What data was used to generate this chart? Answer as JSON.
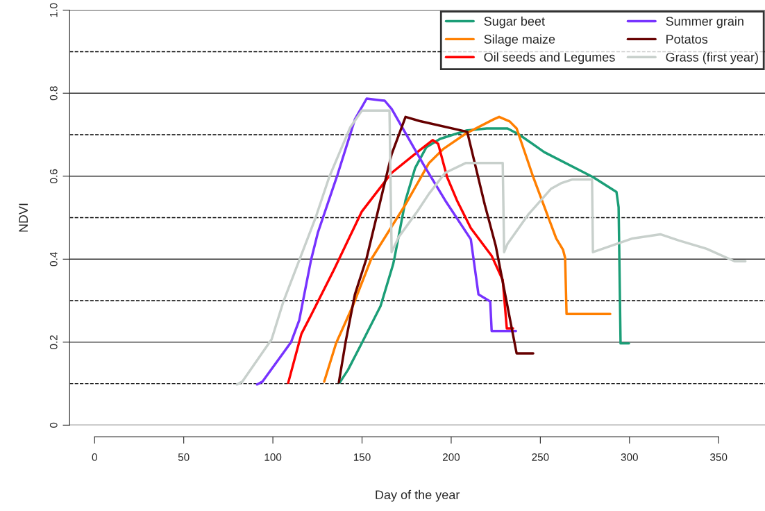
{
  "chart_data": {
    "type": "line",
    "xlabel": "Day of the year",
    "ylabel": "NDVI",
    "xlim": [
      -14,
      376
    ],
    "ylim": [
      0,
      1.0
    ],
    "xticks": [
      0,
      50,
      100,
      150,
      200,
      250,
      300,
      350
    ],
    "yticks": [
      0,
      0.2,
      0.4,
      0.6,
      0.8,
      {
        "value": 1,
        "label": "1.0"
      }
    ],
    "grid": "y",
    "legend": "top right",
    "line_style": "solid",
    "marker": "none",
    "ref_lines": [
      {
        "axis": "y",
        "value": 0.1,
        "line_style": "dashed",
        "color": "#000000"
      },
      {
        "axis": "y",
        "value": 0.3,
        "line_style": "dashed",
        "color": "#000000"
      },
      {
        "axis": "y",
        "value": 0.5,
        "line_style": "dashed",
        "color": "#000000"
      },
      {
        "axis": "y",
        "value": 0.7,
        "line_style": "dashed",
        "color": "#000000"
      },
      {
        "axis": "y",
        "value": 0.9,
        "line_style": "dashed",
        "color": "#000000"
      }
    ],
    "series": [
      {
        "name": "Sugar beet",
        "color": "#1b9e77",
        "x": [
          137.4,
          142.1,
          149.9,
          160.4,
          167.4,
          168.2,
          174.4,
          179.8,
          186.1,
          193.8,
          208.3,
          219.9,
          231.6,
          238.2,
          252.2,
          279.5,
          292.7,
          293.9,
          295,
          299.7
        ],
        "values": [
          0.102,
          0.133,
          0.198,
          0.287,
          0.387,
          0.403,
          0.542,
          0.62,
          0.67,
          0.69,
          0.71,
          0.715,
          0.715,
          0.7,
          0.658,
          0.598,
          0.562,
          0.525,
          0.197,
          0.197
        ]
      },
      {
        "name": "Silage maize",
        "color": "#ff7f00",
        "x": [
          128.8,
          135.5,
          144.8,
          154.9,
          174.4,
          187.6,
          195.4,
          208.3,
          223.8,
          226.9,
          232.8,
          236.7,
          246,
          258.9,
          262.7,
          263.9,
          264.7,
          289.2
        ],
        "values": [
          0.105,
          0.198,
          0.287,
          0.398,
          0.532,
          0.632,
          0.665,
          0.703,
          0.737,
          0.743,
          0.732,
          0.715,
          0.598,
          0.45,
          0.423,
          0.403,
          0.268,
          0.268
        ]
      },
      {
        "name": "Oil seeds and Legumes",
        "color": "#ff0000",
        "x": [
          108.6,
          116,
          121.4,
          134.3,
          149.9,
          166.6,
          181,
          189.6,
          192.7,
          197.7,
          203.2,
          211,
          222.7,
          228.9,
          231.2,
          234.7
        ],
        "values": [
          0.102,
          0.22,
          0.265,
          0.375,
          0.515,
          0.608,
          0.658,
          0.687,
          0.678,
          0.598,
          0.542,
          0.475,
          0.408,
          0.35,
          0.233,
          0.233
        ]
      },
      {
        "name": "Summer grain",
        "color": "#7733ff",
        "x": [
          91.1,
          94.2,
          110.2,
          114.8,
          117.6,
          121.4,
          125.3,
          136.2,
          146,
          152.6,
          160.4,
          162.7,
          166.6,
          184.9,
          196.6,
          211,
          215.3,
          221.9,
          222.7,
          236.3
        ],
        "values": [
          0.098,
          0.105,
          0.2,
          0.253,
          0.315,
          0.398,
          0.465,
          0.603,
          0.737,
          0.787,
          0.783,
          0.782,
          0.762,
          0.625,
          0.542,
          0.448,
          0.315,
          0.298,
          0.227,
          0.227
        ]
      },
      {
        "name": "Potatos",
        "color": "#660000",
        "x": [
          137,
          140.9,
          146,
          152.6,
          166.6,
          174.4,
          182.2,
          209,
          218.8,
          225,
          236.7,
          246
        ],
        "values": [
          0.103,
          0.203,
          0.315,
          0.403,
          0.653,
          0.743,
          0.733,
          0.707,
          0.532,
          0.432,
          0.173,
          0.173
        ]
      },
      {
        "name": "Grass (first year)",
        "color": "#c8d0cc",
        "x": [
          79.8,
          82.9,
          99.3,
          105.9,
          123.8,
          131.6,
          137,
          143.3,
          149.9,
          165.4,
          166.6,
          170.5,
          181,
          187.6,
          196.6,
          208.3,
          228.9,
          229.7,
          231.6,
          243.3,
          256.1,
          261.6,
          267.8,
          279,
          279.5,
          301.7,
          317.3,
          327.7,
          343.3,
          358.9,
          365
        ],
        "values": [
          0.098,
          0.105,
          0.207,
          0.298,
          0.498,
          0.598,
          0.653,
          0.717,
          0.758,
          0.758,
          0.417,
          0.453,
          0.515,
          0.558,
          0.608,
          0.632,
          0.632,
          0.417,
          0.437,
          0.508,
          0.57,
          0.583,
          0.592,
          0.592,
          0.417,
          0.45,
          0.46,
          0.445,
          0.425,
          0.395,
          0.395
        ]
      }
    ]
  }
}
